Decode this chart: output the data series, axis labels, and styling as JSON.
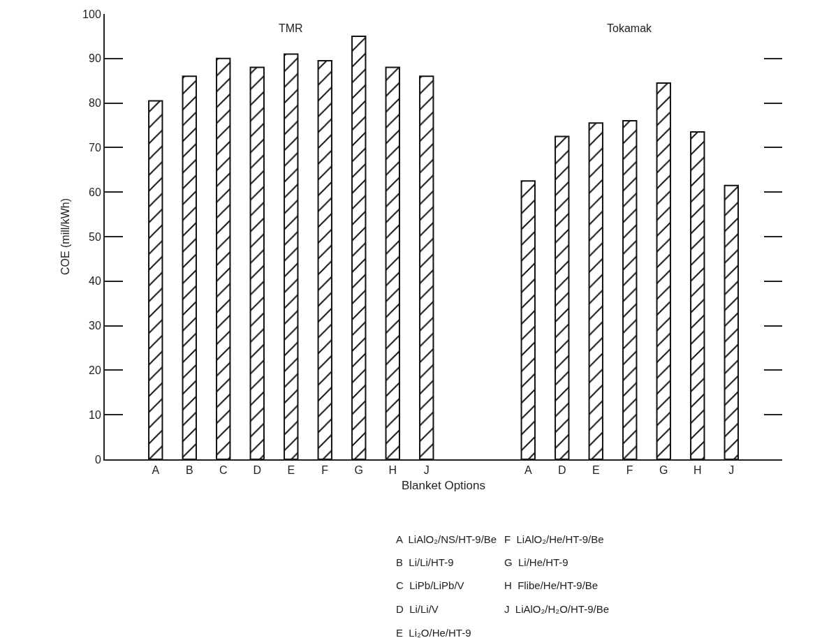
{
  "chart_data": {
    "type": "bar",
    "xlabel": "Blanket Options",
    "ylabel": "COE (mill/kWh)",
    "categories": [
      "A",
      "B",
      "C",
      "D",
      "E",
      "F",
      "G",
      "H",
      "J",
      null,
      null,
      "A",
      "D",
      "E",
      "F",
      "G",
      "H",
      "J"
    ],
    "values": [
      80.5,
      86,
      90,
      88,
      91,
      89.5,
      95,
      88,
      86,
      null,
      null,
      62.5,
      72.5,
      75.5,
      76,
      84.5,
      73.5,
      61.5
    ],
    "color": "#111111",
    "ylim": [
      0,
      100
    ],
    "yticks": [
      0,
      10,
      20,
      30,
      40,
      50,
      60,
      70,
      80,
      90,
      100
    ],
    "grid": false,
    "annotations": [
      "TMR",
      "Tokamak",
      "A  LiAlO₂/NS/HT-9/Be",
      "B  Li/Li/HT-9",
      "C  LiPb/LiPb/V",
      "D  Li/Li/V",
      "E  Li₂O/He/HT-9",
      "F  LiAlO₂/He/HT-9/Be",
      "G  Li/He/HT-9",
      "H  Flibe/He/HT-9/Be",
      "J  LiAlO₂/H₂O/HT-9/Be"
    ]
  }
}
